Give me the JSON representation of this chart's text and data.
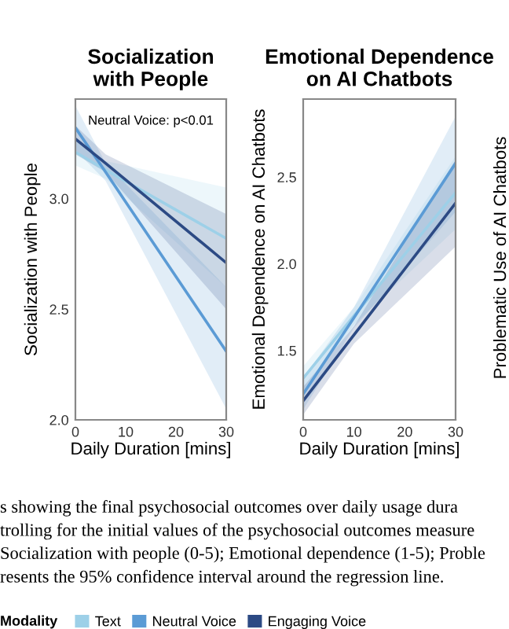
{
  "chart_data": [
    {
      "type": "line",
      "title": "Socialization\nwith People",
      "xlabel": "Daily Duration [mins]",
      "ylabel": "Socialization with People",
      "xlim": [
        0,
        30
      ],
      "xticks": [
        0,
        10,
        20,
        30
      ],
      "ylim": [
        2.0,
        3.45
      ],
      "yticks": [
        {
          "value": 2.0,
          "label": "2.0"
        },
        {
          "value": 2.5,
          "label": "2.5"
        },
        {
          "value": 3.0,
          "label": "3.0"
        }
      ],
      "grid": false,
      "legend": "bottom",
      "legend_title": "Modality",
      "series": [
        {
          "name": "Text",
          "color": "#9dd0e8",
          "x": [
            0,
            6,
            30
          ],
          "values": [
            3.21,
            3.13,
            2.82
          ],
          "lower": [
            3.15,
            3.09,
            2.6
          ],
          "upper": [
            3.27,
            3.17,
            3.05
          ]
        },
        {
          "name": "Neutral Voice",
          "color": "#5b9bd5",
          "x": [
            0,
            6,
            30
          ],
          "values": [
            3.32,
            3.12,
            2.31
          ],
          "lower": [
            3.22,
            3.08,
            2.05
          ],
          "upper": [
            3.42,
            3.16,
            2.6
          ]
        },
        {
          "name": "Engaging Voice",
          "color": "#2c4a84",
          "x": [
            0,
            6,
            30
          ],
          "values": [
            3.27,
            3.16,
            2.71
          ],
          "lower": [
            3.2,
            3.12,
            2.5
          ],
          "upper": [
            3.33,
            3.2,
            2.93
          ]
        }
      ],
      "annotations": [
        "Neutral Voice: p<0.01",
        "s showing the final psychosocial outcomes over daily usage dura",
        "trolling for the initial values of the psychosocial outcomes measure",
        "Socialization with people (0-5); Emotional dependence (1-5); Proble",
        "resents the 95% confidence interval around the regression line."
      ]
    },
    {
      "type": "line",
      "title": "Emotional Dependence\non AI Chatbots",
      "xlabel": "Daily Duration [mins]",
      "ylabel": "Emotional Dependence on AI Chatbots",
      "xlim": [
        0,
        30
      ],
      "xticks": [
        0,
        10,
        20,
        30
      ],
      "ylim": [
        1.1,
        2.95
      ],
      "yticks": [
        1.5,
        {
          "value": 2.0,
          "label": "2.0"
        },
        2.5
      ],
      "grid": false,
      "series": [
        {
          "color": "#9dd0e8",
          "x": [
            0,
            10,
            30
          ],
          "values": [
            1.34,
            1.7,
            2.41
          ],
          "lower": [
            1.27,
            1.65,
            2.2
          ],
          "upper": [
            1.41,
            1.75,
            2.62
          ]
        },
        {
          "color": "#5b9bd5",
          "x": [
            0,
            10,
            30
          ],
          "values": [
            1.25,
            1.69,
            2.58
          ],
          "lower": [
            1.16,
            1.63,
            2.3
          ],
          "upper": [
            1.34,
            1.75,
            2.85
          ]
        },
        {
          "color": "#2c4a84",
          "x": [
            0,
            10,
            30
          ],
          "values": [
            1.21,
            1.59,
            2.35
          ],
          "lower": [
            1.13,
            1.54,
            2.1
          ],
          "upper": [
            1.29,
            1.64,
            2.6
          ]
        }
      ],
      "annotations": [
        "Problematic Use of AI Chatbots"
      ]
    }
  ]
}
